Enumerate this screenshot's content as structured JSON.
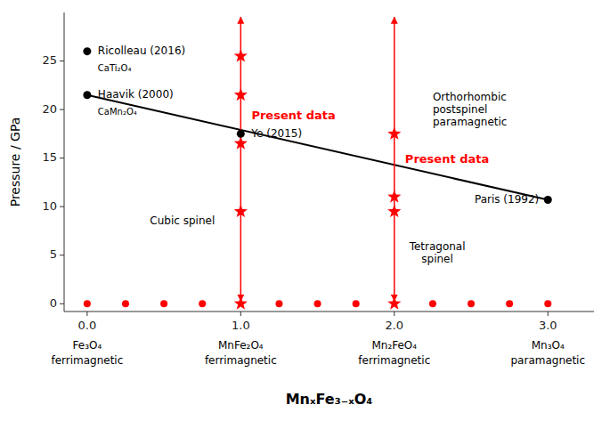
{
  "chart_data": {
    "type": "scatter",
    "ylabel": "Pressure / GPa",
    "xlabel": "MnₓFe₃₋ₓO₄",
    "xlim": [
      -0.15,
      3.3
    ],
    "ylim": [
      -0.8,
      30
    ],
    "xticks": [
      {
        "value": 0.0,
        "label": "0.0"
      },
      {
        "value": 1.0,
        "label": "1.0"
      },
      {
        "value": 2.0,
        "label": "2.0"
      },
      {
        "value": 3.0,
        "label": "3.0"
      }
    ],
    "yticks": [
      0,
      5,
      10,
      15,
      20,
      25
    ],
    "grid": false,
    "xtick_notes": [
      {
        "value": 0.0,
        "lines": [
          "Fe₃O₄",
          "ferrimagnetic"
        ]
      },
      {
        "value": 1.0,
        "lines": [
          "MnFe₂O₄",
          "ferrimagnetic"
        ]
      },
      {
        "value": 2.0,
        "lines": [
          "Mn₂FeO₄",
          "ferrimagnetic"
        ]
      },
      {
        "value": 3.0,
        "lines": [
          "Mn₃O₄",
          "paramagnetic"
        ]
      }
    ],
    "series": [
      {
        "type": "line",
        "color": "#000000",
        "x": [
          0.0,
          3.0
        ],
        "values": [
          21.5,
          10.7
        ]
      },
      {
        "type": "arrow",
        "color": "#ff0000",
        "x": [
          1.0,
          1.0
        ],
        "values": [
          0.3,
          29.5
        ]
      },
      {
        "type": "arrow",
        "color": "#ff0000",
        "x": [
          2.0,
          2.0
        ],
        "values": [
          0.3,
          29.5
        ]
      },
      {
        "type": "scatter",
        "marker": "star",
        "color": "#ff0000",
        "x": [
          1.0,
          1.0,
          1.0,
          1.0
        ],
        "values": [
          25.5,
          21.5,
          16.5,
          9.5
        ]
      },
      {
        "type": "scatter",
        "marker": "star",
        "color": "#ff0000",
        "x": [
          2.0,
          2.0,
          2.0
        ],
        "values": [
          17.5,
          11.0,
          9.5
        ]
      },
      {
        "type": "scatter",
        "marker": "circle",
        "color": "#ff0000",
        "x": [
          0.0,
          0.25,
          0.5,
          0.75,
          1.25,
          1.5,
          1.75,
          2.25,
          2.5,
          2.75,
          3.0
        ],
        "values": [
          0,
          0,
          0,
          0,
          0,
          0,
          0,
          0,
          0,
          0,
          0
        ]
      },
      {
        "type": "scatter",
        "marker": "star",
        "color": "#ff0000",
        "x": [
          1.0,
          2.0
        ],
        "values": [
          0,
          0
        ]
      },
      {
        "type": "scatter",
        "marker": "circle",
        "color": "#000000",
        "x": [
          0.0,
          0.0,
          1.0,
          3.0
        ],
        "values": [
          26.0,
          21.5,
          17.5,
          10.7
        ],
        "point_labels": [
          "Ricolleau (2016)",
          "Haavik (2000)",
          "Ye (2015)",
          "Paris (1992)"
        ],
        "point_sublabels": [
          "CaTi₂O₄",
          "CaMn₂O₄",
          null,
          null
        ]
      }
    ],
    "annotations": [
      {
        "text": "Present data",
        "x": 1.07,
        "y": 19.3,
        "color": "#ff0000",
        "align": "left"
      },
      {
        "text": "Present data",
        "x": 2.07,
        "y": 14.8,
        "color": "#ff0000",
        "align": "left"
      },
      {
        "text": "Orthorhombic\npostspinel\nparamagnetic",
        "x": 2.25,
        "y": 20.0,
        "color": "#000000",
        "align": "left"
      },
      {
        "text": "Cubic spinel",
        "x": 0.62,
        "y": 8.5,
        "color": "#000000",
        "align": "center"
      },
      {
        "text": "Tetragonal\nspinel",
        "x": 2.28,
        "y": 5.2,
        "color": "#000000",
        "align": "center"
      }
    ]
  }
}
